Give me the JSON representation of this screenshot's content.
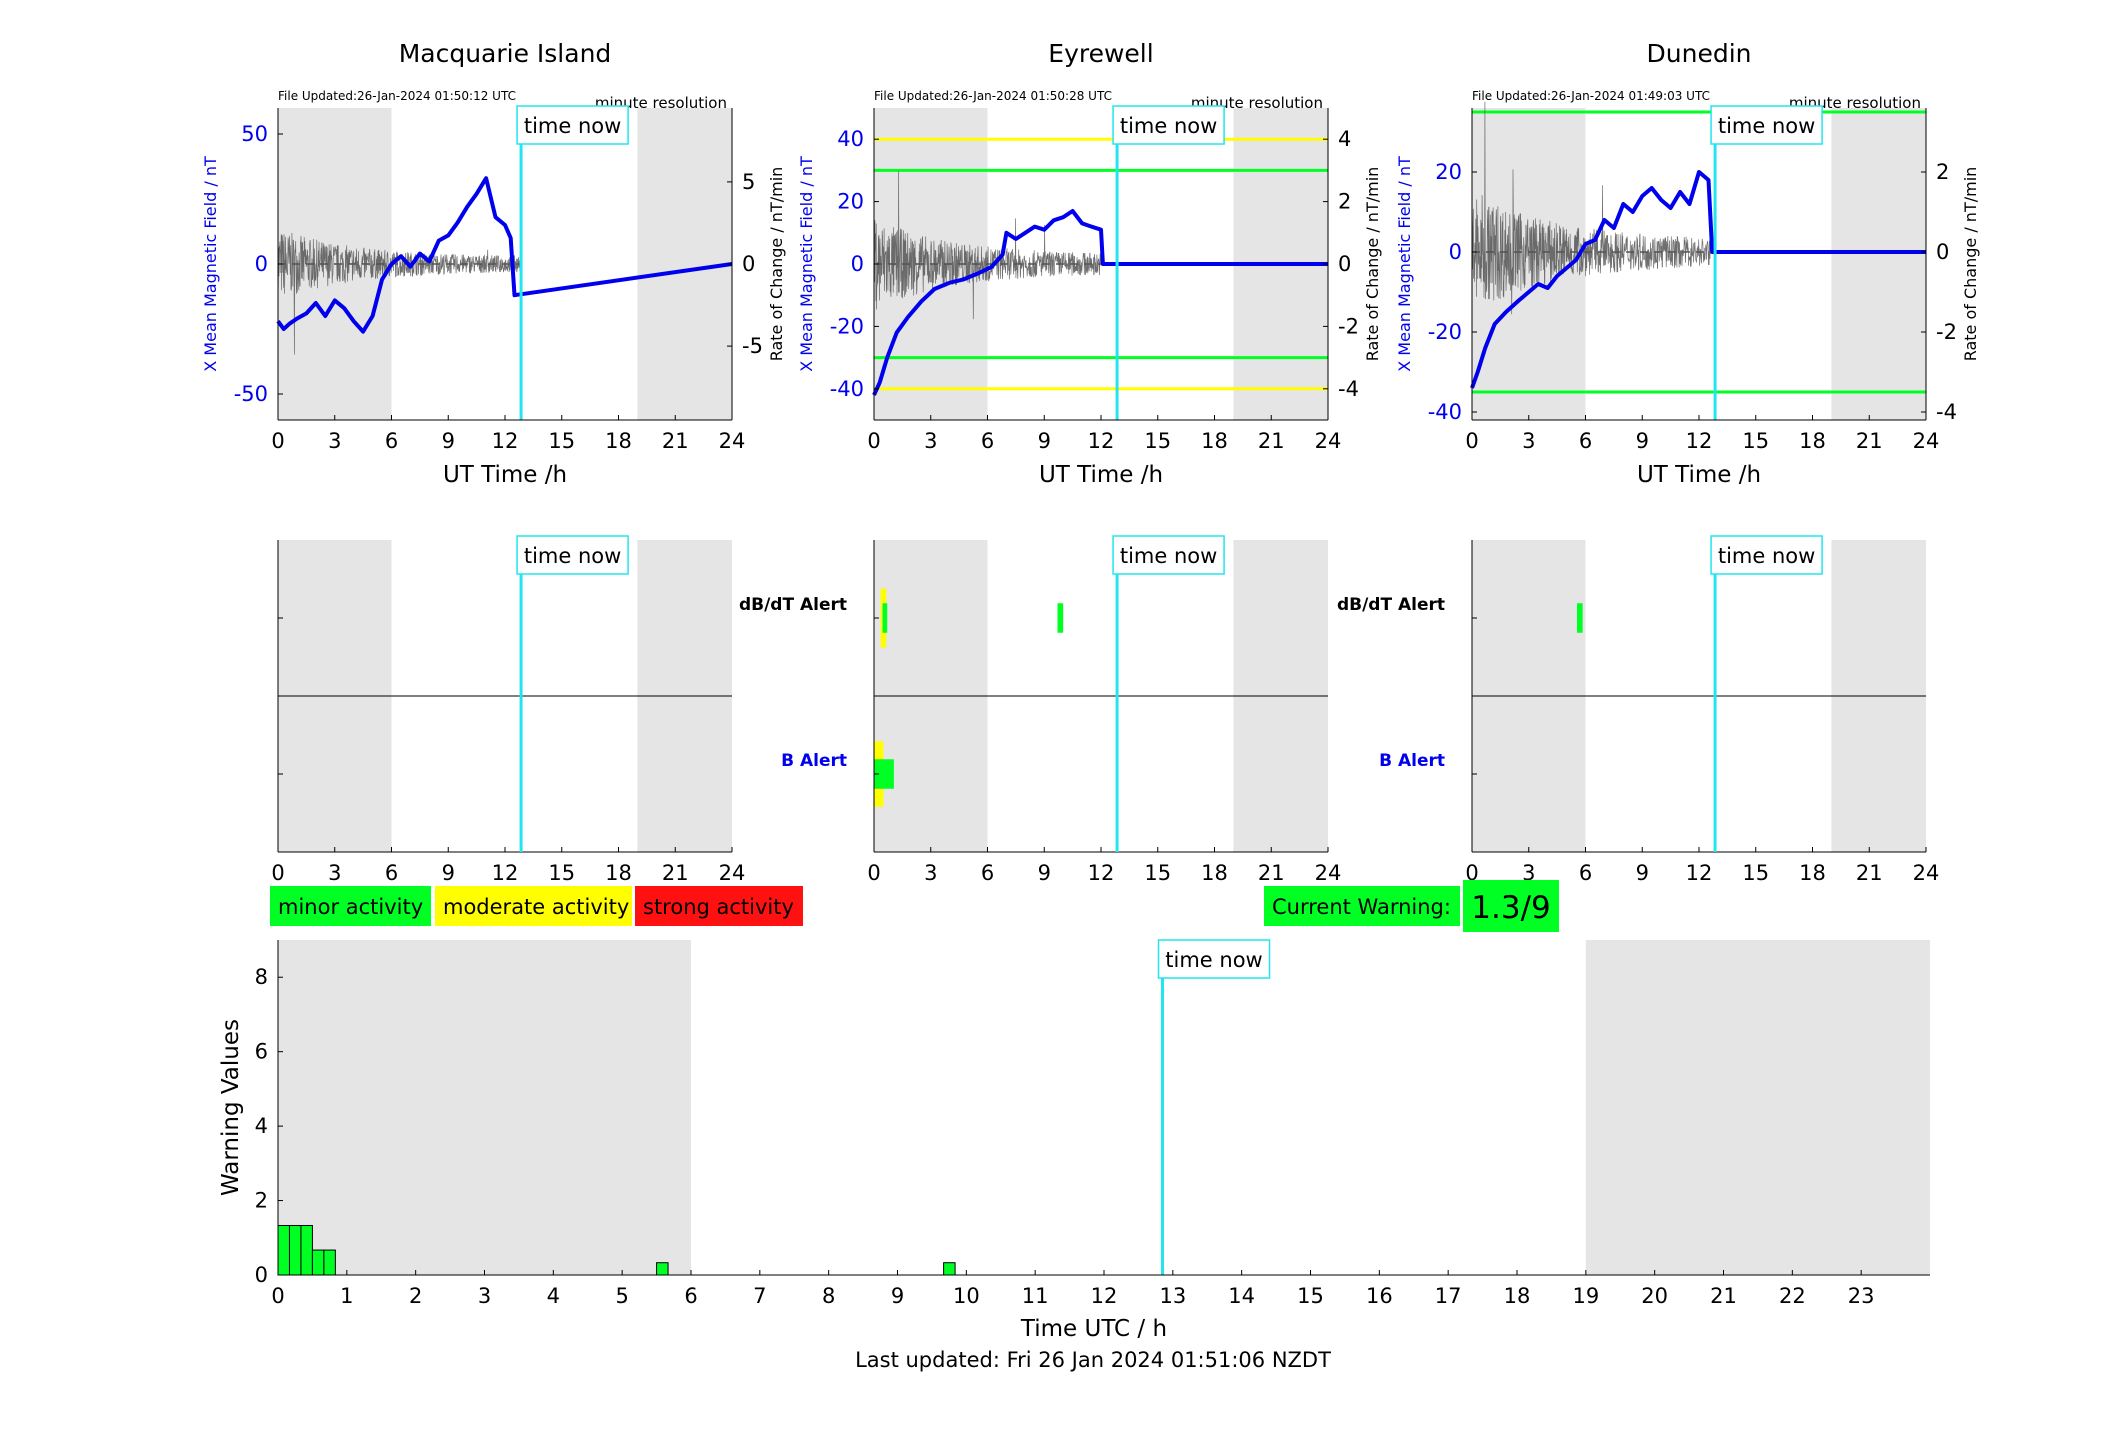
{
  "common": {
    "time_now_label": "time now",
    "time_now_hour": 12.85,
    "xlabel": "UT Time /h",
    "x_ticks": [
      0,
      3,
      6,
      9,
      12,
      15,
      18,
      21,
      24
    ],
    "night_shading_hours": [
      [
        0,
        6
      ],
      [
        19,
        24
      ]
    ],
    "left_ylabel": "X Mean Magnetic Field / nT",
    "right_ylabel": "Rate of Change / nT/min",
    "resolution_label": "minute resolution"
  },
  "colors": {
    "field_line": "#0000ee",
    "rate_line": "#555555",
    "time_now": "#22e5ee",
    "minor": "#00ff22",
    "moderate": "#ffff00",
    "strong": "#ff1111",
    "night_shade": "#e5e5e5"
  },
  "alerts": {
    "dbdt_label": "dB/dT Alert",
    "b_label": "B Alert"
  },
  "legend": {
    "minor": "minor activity",
    "moderate": "moderate activity",
    "strong": "strong activity"
  },
  "current_warning": {
    "label": "Current Warning:",
    "value": "1.3/9"
  },
  "last_updated": "Last updated: Fri 26 Jan 2024 01:51:06 NZDT",
  "chart_data": [
    {
      "type": "line",
      "title": "Macquarie Island",
      "file_updated": "File Updated:26-Jan-2024 01:50:12 UTC",
      "xlim": [
        0,
        24
      ],
      "ylim": [
        -60,
        60
      ],
      "y_ticks": [
        -50,
        0,
        50
      ],
      "y2lim": [
        -9.5,
        9.5
      ],
      "y2_ticks": [
        -5,
        0,
        5
      ],
      "threshold_lines": [],
      "field_series": {
        "x": [
          0,
          0.3,
          0.6,
          1,
          1.5,
          2,
          2.5,
          3,
          3.5,
          4,
          4.5,
          5,
          5.5,
          6,
          6.5,
          7,
          7.5,
          8,
          8.5,
          9,
          9.5,
          10,
          10.5,
          11,
          11.5,
          12,
          12.3,
          12.5,
          24
        ],
        "y": [
          -22,
          -25,
          -23,
          -21,
          -19,
          -15,
          -20,
          -14,
          -17,
          -22,
          -26,
          -20,
          -6,
          0,
          3,
          -1,
          4,
          1,
          9,
          11,
          16,
          22,
          27,
          33,
          18,
          15,
          10,
          -12,
          0
        ]
      },
      "rate_amplitude": 2.2,
      "rate_end_hour": 12.8,
      "alert_dbdt": [],
      "alert_b": []
    },
    {
      "type": "line",
      "title": "Eyrewell",
      "file_updated": "File Updated:26-Jan-2024 01:50:28 UTC",
      "xlim": [
        0,
        24
      ],
      "ylim": [
        -50,
        50
      ],
      "y_ticks": [
        -40,
        -20,
        0,
        20,
        40
      ],
      "y2lim": [
        -5,
        5
      ],
      "y2_ticks": [
        -4,
        -2,
        0,
        2,
        4
      ],
      "threshold_lines": [
        {
          "value": 40,
          "color": "#ffff00"
        },
        {
          "value": 30,
          "color": "#00ff22"
        },
        {
          "value": -30,
          "color": "#00ff22"
        },
        {
          "value": -40,
          "color": "#ffff00"
        }
      ],
      "field_series": {
        "x": [
          0,
          0.3,
          0.7,
          1.2,
          1.8,
          2.5,
          3.2,
          4,
          4.7,
          5.5,
          6.2,
          6.8,
          7,
          7.5,
          8,
          8.5,
          9,
          9.5,
          10,
          10.5,
          11,
          11.5,
          12,
          12.1,
          24
        ],
        "y": [
          -42,
          -38,
          -30,
          -22,
          -17,
          -12,
          -8,
          -6,
          -5,
          -3,
          -1,
          3,
          10,
          8,
          10,
          12,
          11,
          14,
          15,
          17,
          13,
          12,
          11,
          0,
          0
        ]
      },
      "rate_amplitude": 1.5,
      "rate_end_hour": 12.0,
      "alert_dbdt": [
        {
          "start": 0.35,
          "end": 0.65,
          "level": "moderate",
          "width": 0.9
        },
        {
          "start": 0.45,
          "end": 0.7,
          "level": "minor",
          "width": 0.45
        },
        {
          "start": 9.7,
          "end": 10.0,
          "level": "minor",
          "width": 0.45
        }
      ],
      "alert_b": [
        {
          "start": 0.0,
          "end": 0.5,
          "level": "moderate",
          "width": 1.0
        },
        {
          "start": 0.0,
          "end": 1.05,
          "level": "minor",
          "width": 0.45
        }
      ]
    },
    {
      "type": "line",
      "title": "Dunedin",
      "file_updated": "File Updated:26-Jan-2024 01:49:03 UTC",
      "xlim": [
        0,
        24
      ],
      "ylim": [
        -42,
        36
      ],
      "y_ticks": [
        -40,
        -20,
        0,
        20
      ],
      "y2lim": [
        -4.2,
        3.6
      ],
      "y2_ticks": [
        -4,
        -2,
        0,
        2
      ],
      "threshold_lines": [
        {
          "value": 35,
          "color": "#00ff22"
        },
        {
          "value": -35,
          "color": "#00ff22"
        }
      ],
      "field_series": {
        "x": [
          0,
          0.3,
          0.7,
          1.2,
          1.8,
          2.5,
          3,
          3.5,
          4,
          4.5,
          5,
          5.5,
          6,
          6.5,
          7,
          7.5,
          8,
          8.5,
          9,
          9.5,
          10,
          10.5,
          11,
          11.5,
          12,
          12.5,
          12.7,
          24
        ],
        "y": [
          -34,
          -30,
          -24,
          -18,
          -15,
          -12,
          -10,
          -8,
          -9,
          -6,
          -4,
          -2,
          2,
          3,
          8,
          6,
          12,
          10,
          14,
          16,
          13,
          11,
          15,
          12,
          20,
          18,
          0,
          0
        ]
      },
      "rate_amplitude": 1.6,
      "rate_end_hour": 12.6,
      "alert_dbdt": [
        {
          "start": 5.55,
          "end": 5.85,
          "level": "minor",
          "width": 0.45
        }
      ],
      "alert_b": []
    },
    {
      "type": "bar",
      "title": "",
      "xlabel": "Time UTC / h",
      "ylabel": "Warning Values",
      "xlim": [
        0,
        24
      ],
      "ylim": [
        0,
        9
      ],
      "x_ticks": [
        0,
        1,
        2,
        3,
        4,
        5,
        6,
        7,
        8,
        9,
        10,
        11,
        12,
        13,
        14,
        15,
        16,
        17,
        18,
        19,
        20,
        21,
        22,
        23
      ],
      "y_ticks": [
        0,
        2,
        4,
        6,
        8
      ],
      "bar_width_hours": 0.1667,
      "bars": [
        {
          "x": 0.0,
          "value": 1.33
        },
        {
          "x": 0.1667,
          "value": 1.33
        },
        {
          "x": 0.3333,
          "value": 1.33
        },
        {
          "x": 0.5,
          "value": 0.67
        },
        {
          "x": 0.6667,
          "value": 0.67
        },
        {
          "x": 5.5,
          "value": 0.33
        },
        {
          "x": 9.67,
          "value": 0.33
        }
      ]
    }
  ]
}
